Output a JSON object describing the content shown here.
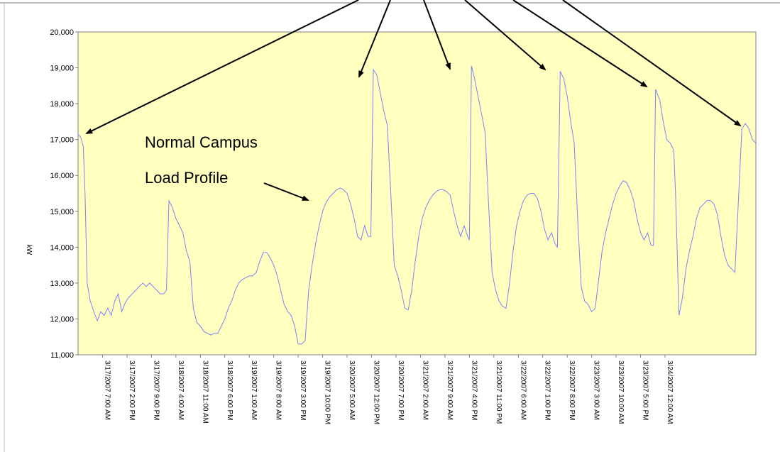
{
  "chart_data": {
    "type": "line",
    "title": "",
    "xlabel": "",
    "ylabel": "kW",
    "ylim": [
      11000,
      20000
    ],
    "y_ticks": [
      "20,000",
      "19,000",
      "18,000",
      "17,000",
      "16,000",
      "15,000",
      "14,000",
      "13,000",
      "12,000",
      "11,000"
    ],
    "y_tick_values": [
      20000,
      19000,
      18000,
      17000,
      16000,
      15000,
      14000,
      13000,
      12000,
      11000
    ],
    "categories": [
      "3/17/2007 7:00 AM",
      "3/17/2007 2:00 PM",
      "3/17/2007 9:00 PM",
      "3/18/2007 4:00 AM",
      "3/18/2007 11:00 AM",
      "3/18/2007 6:00 PM",
      "3/19/2007 1:00 AM",
      "3/19/2007 8:00 AM",
      "3/19/2007 3:00 PM",
      "3/19/2007 10:00 PM",
      "3/20/2007 5:00 AM",
      "3/20/2007 12:00 PM",
      "3/20/2007 7:00 PM",
      "3/21/2007 2:00 AM",
      "3/21/2007 9:00 AM",
      "3/21/2007 4:00 PM",
      "3/21/2007 11:00 PM",
      "3/22/2007 6:00 AM",
      "3/22/2007 1:00 PM",
      "3/22/2007 8:00 PM",
      "3/23/2007 3:00 AM",
      "3/23/2007 10:00 AM",
      "3/23/2007 5:00 PM",
      "3/24/2007 12:00 AM"
    ],
    "x_start_hour": 0,
    "x_end_hour": 171,
    "tick_hours": [
      7,
      14,
      21,
      28,
      35,
      42,
      49,
      56,
      63,
      70,
      77,
      84,
      91,
      98,
      105,
      112,
      119,
      126,
      133,
      140,
      147,
      154,
      161,
      168
    ],
    "series": [
      {
        "values_hour_kw": [
          [
            0,
            17150
          ],
          [
            0.8,
            17050
          ],
          [
            1.5,
            16800
          ],
          [
            2,
            15500
          ],
          [
            2.6,
            13000
          ],
          [
            3.5,
            12500
          ],
          [
            4.5,
            12200
          ],
          [
            5.5,
            11950
          ],
          [
            6.5,
            12200
          ],
          [
            7.5,
            12100
          ],
          [
            8.5,
            12300
          ],
          [
            9.5,
            12100
          ],
          [
            10.5,
            12500
          ],
          [
            11.5,
            12700
          ],
          [
            12.5,
            12200
          ],
          [
            13.5,
            12450
          ],
          [
            14.5,
            12600
          ],
          [
            15.5,
            12700
          ],
          [
            16.5,
            12800
          ],
          [
            17.5,
            12900
          ],
          [
            18.5,
            13000
          ],
          [
            19.5,
            12900
          ],
          [
            20.5,
            13000
          ],
          [
            21.5,
            12900
          ],
          [
            22.5,
            12800
          ],
          [
            23.5,
            12700
          ],
          [
            24.5,
            12700
          ],
          [
            25.3,
            12800
          ],
          [
            26,
            15300
          ],
          [
            27,
            15100
          ],
          [
            28,
            14800
          ],
          [
            29,
            14600
          ],
          [
            30,
            14400
          ],
          [
            31,
            13900
          ],
          [
            32,
            13600
          ],
          [
            33,
            12300
          ],
          [
            34,
            11900
          ],
          [
            35,
            11800
          ],
          [
            36,
            11650
          ],
          [
            37,
            11600
          ],
          [
            38,
            11550
          ],
          [
            39,
            11600
          ],
          [
            40,
            11600
          ],
          [
            41,
            11800
          ],
          [
            42,
            12000
          ],
          [
            43,
            12300
          ],
          [
            44,
            12500
          ],
          [
            45,
            12800
          ],
          [
            46,
            13000
          ],
          [
            47,
            13100
          ],
          [
            48,
            13150
          ],
          [
            49,
            13200
          ],
          [
            50,
            13200
          ],
          [
            51,
            13300
          ],
          [
            52,
            13600
          ],
          [
            53,
            13850
          ],
          [
            54,
            13850
          ],
          [
            55,
            13700
          ],
          [
            56,
            13500
          ],
          [
            57,
            13200
          ],
          [
            58,
            12800
          ],
          [
            59,
            12400
          ],
          [
            60,
            12200
          ],
          [
            61,
            12100
          ],
          [
            62,
            11800
          ],
          [
            63,
            11300
          ],
          [
            64,
            11300
          ],
          [
            65,
            11400
          ],
          [
            66,
            12800
          ],
          [
            67,
            13500
          ],
          [
            68,
            14100
          ],
          [
            69,
            14600
          ],
          [
            70,
            15000
          ],
          [
            71,
            15250
          ],
          [
            72,
            15400
          ],
          [
            73,
            15500
          ],
          [
            74,
            15600
          ],
          [
            75,
            15650
          ],
          [
            76,
            15600
          ],
          [
            77,
            15500
          ],
          [
            78,
            15200
          ],
          [
            79,
            14800
          ],
          [
            80,
            14300
          ],
          [
            81,
            14200
          ],
          [
            82,
            14600
          ],
          [
            83,
            14300
          ],
          [
            83.8,
            14300
          ],
          [
            84.5,
            18950
          ],
          [
            85.5,
            18800
          ],
          [
            86.5,
            18300
          ],
          [
            87.5,
            17800
          ],
          [
            88.5,
            17400
          ],
          [
            89.5,
            15500
          ],
          [
            90.5,
            13500
          ],
          [
            91.5,
            13200
          ],
          [
            92.5,
            12800
          ],
          [
            93.5,
            12300
          ],
          [
            94.5,
            12250
          ],
          [
            95.5,
            12800
          ],
          [
            96.5,
            13600
          ],
          [
            97.5,
            14300
          ],
          [
            98.5,
            14800
          ],
          [
            99.5,
            15100
          ],
          [
            100.5,
            15300
          ],
          [
            101.5,
            15450
          ],
          [
            102.5,
            15550
          ],
          [
            103.5,
            15600
          ],
          [
            104.5,
            15600
          ],
          [
            105.5,
            15550
          ],
          [
            106.5,
            15450
          ],
          [
            107.5,
            15000
          ],
          [
            108.5,
            14600
          ],
          [
            109.5,
            14300
          ],
          [
            110.5,
            14600
          ],
          [
            111.5,
            14300
          ],
          [
            112,
            14200
          ],
          [
            112.6,
            19050
          ],
          [
            113.5,
            18700
          ],
          [
            114.5,
            18200
          ],
          [
            115.5,
            17700
          ],
          [
            116.5,
            17200
          ],
          [
            117.5,
            15200
          ],
          [
            118.5,
            13300
          ],
          [
            119.5,
            12800
          ],
          [
            120.5,
            12500
          ],
          [
            121.5,
            12350
          ],
          [
            122.5,
            12300
          ],
          [
            123.5,
            13000
          ],
          [
            124.5,
            13900
          ],
          [
            125.5,
            14600
          ],
          [
            126.5,
            15000
          ],
          [
            127.5,
            15300
          ],
          [
            128.5,
            15450
          ],
          [
            129.5,
            15500
          ],
          [
            130.5,
            15500
          ],
          [
            131.5,
            15350
          ],
          [
            132.5,
            15000
          ],
          [
            133.5,
            14500
          ],
          [
            134.5,
            14200
          ],
          [
            135.5,
            14400
          ],
          [
            136.5,
            14100
          ],
          [
            137.2,
            14000
          ],
          [
            138,
            18900
          ],
          [
            139,
            18700
          ],
          [
            140,
            18200
          ],
          [
            141,
            17500
          ],
          [
            142,
            16900
          ],
          [
            143,
            14800
          ],
          [
            144,
            12900
          ],
          [
            145,
            12500
          ],
          [
            146,
            12400
          ],
          [
            147,
            12200
          ],
          [
            148,
            12300
          ],
          [
            149,
            13100
          ],
          [
            150,
            13900
          ],
          [
            151,
            14400
          ],
          [
            152,
            14800
          ],
          [
            153,
            15200
          ],
          [
            154,
            15500
          ],
          [
            155,
            15700
          ],
          [
            156,
            15850
          ],
          [
            157,
            15800
          ],
          [
            158,
            15600
          ],
          [
            159,
            15300
          ],
          [
            160,
            14800
          ],
          [
            161,
            14400
          ],
          [
            162,
            14200
          ],
          [
            163,
            14400
          ],
          [
            164,
            14050
          ],
          [
            164.7,
            14050
          ],
          [
            165.3,
            18400
          ],
          [
            166.5,
            18100
          ],
          [
            167.5,
            17500
          ],
          [
            168.5,
            17000
          ],
          [
            169.5,
            16900
          ],
          [
            170.5,
            16700
          ],
          [
            171,
            15500
          ]
        ]
      }
    ],
    "series_part2_hour_kw": [
      [
        171,
        15500
      ],
      [
        172,
        12100
      ],
      [
        173,
        12600
      ],
      [
        174,
        13400
      ],
      [
        175,
        13900
      ],
      [
        176,
        14300
      ],
      [
        177,
        14800
      ],
      [
        178,
        15100
      ],
      [
        179,
        15200
      ],
      [
        180,
        15300
      ],
      [
        181,
        15300
      ],
      [
        182,
        15200
      ],
      [
        183,
        14900
      ],
      [
        184,
        14300
      ],
      [
        185,
        13800
      ],
      [
        186,
        13500
      ],
      [
        187,
        13400
      ],
      [
        188,
        13300
      ],
      [
        189,
        15300
      ],
      [
        190,
        17300
      ],
      [
        191,
        17450
      ],
      [
        192,
        17300
      ],
      [
        193,
        17000
      ],
      [
        194,
        16900
      ]
    ],
    "annotations": [
      {
        "text_line1": "Normal Campus",
        "text_line2": "Load Profile"
      }
    ],
    "colors": {
      "plot_bg": "#FFFFC0",
      "line": "#8080FF",
      "frame": "#808080"
    }
  }
}
